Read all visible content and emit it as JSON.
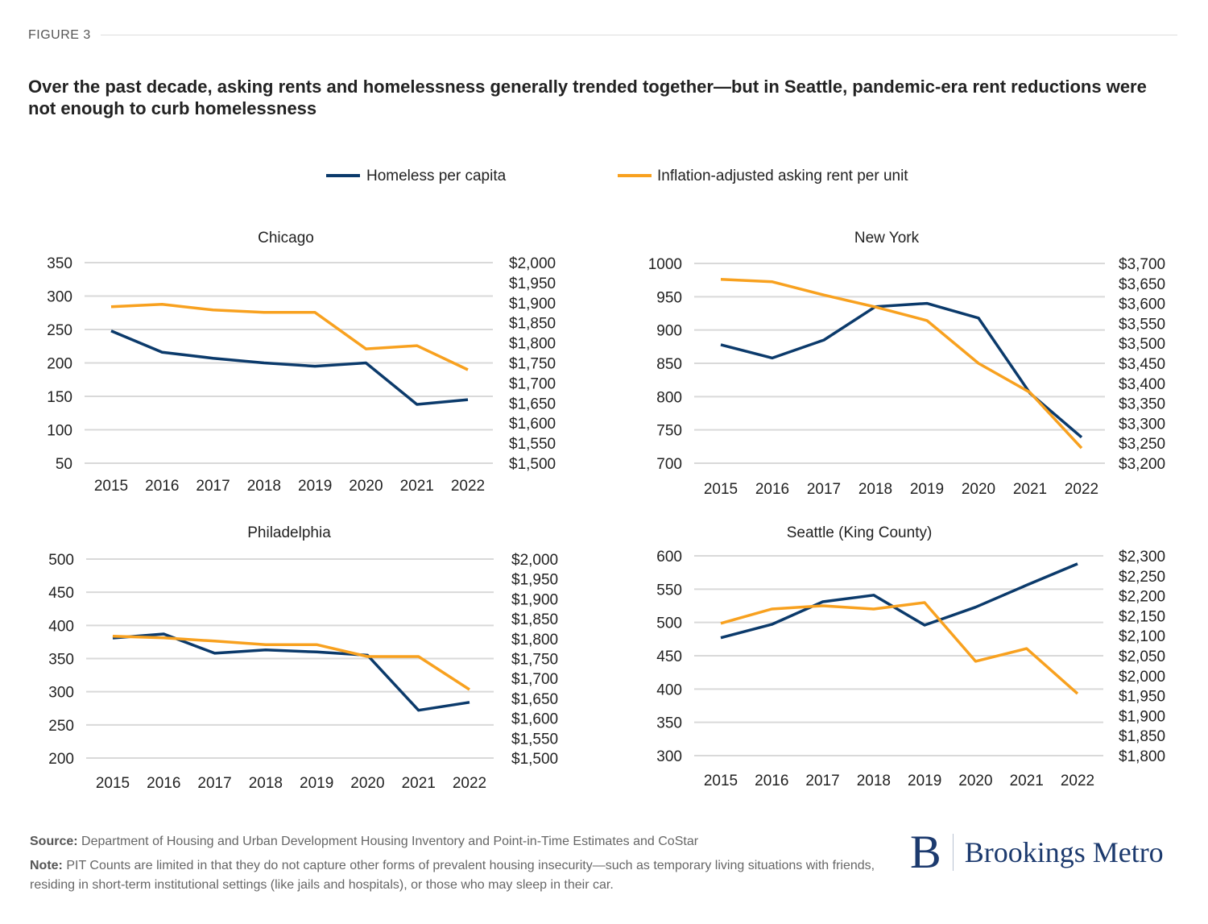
{
  "figure_label": "FIGURE 3",
  "title": "Over the past decade, asking rents and homelessness generally trended together—but in Seattle, pandemic-era rent reductions were not enough to curb homelessness",
  "legend": [
    {
      "label": "Homeless per capita",
      "color": "#0b3a6b"
    },
    {
      "label": "Inflation-adjusted asking rent per unit",
      "color": "#f8a11f"
    }
  ],
  "chart_data": [
    {
      "type": "line",
      "title": "Chicago",
      "categories": [
        "2015",
        "2016",
        "2017",
        "2018",
        "2019",
        "2020",
        "2021",
        "2022"
      ],
      "left_axis": {
        "ylim": [
          50,
          350
        ],
        "ticks": [
          "350",
          "300",
          "250",
          "200",
          "150",
          "100",
          "50"
        ]
      },
      "right_axis": {
        "ylim": [
          1500,
          2000
        ],
        "ticks": [
          "$2,000",
          "$1,950",
          "$1,900",
          "$1,850",
          "$1,800",
          "$1,750",
          "$1,700",
          "$1,650",
          "$1,600",
          "$1,550",
          "$1,500"
        ]
      },
      "grid": true,
      "series": [
        {
          "name": "Homeless per capita",
          "axis": "left",
          "values": [
            248,
            216,
            207,
            200,
            195,
            200,
            138,
            145
          ]
        },
        {
          "name": "Inflation-adjusted asking rent per unit",
          "axis": "right",
          "values": [
            1890,
            1896,
            1882,
            1876,
            1876,
            1785,
            1793,
            1733
          ]
        }
      ]
    },
    {
      "type": "line",
      "title": "New York",
      "categories": [
        "2015",
        "2016",
        "2017",
        "2018",
        "2019",
        "2020",
        "2021",
        "2022"
      ],
      "left_axis": {
        "ylim": [
          700,
          1000
        ],
        "ticks": [
          "1000",
          "950",
          "900",
          "850",
          "800",
          "750",
          "700"
        ]
      },
      "right_axis": {
        "ylim": [
          3200,
          3700
        ],
        "ticks": [
          "$3,700",
          "$3,650",
          "$3,600",
          "$3,550",
          "$3,500",
          "$3,450",
          "$3,400",
          "$3,350",
          "$3,300",
          "$3,250",
          "$3,200"
        ]
      },
      "grid": true,
      "series": [
        {
          "name": "Homeless per capita",
          "axis": "left",
          "values": [
            878,
            858,
            885,
            935,
            940,
            918,
            805,
            739
          ]
        },
        {
          "name": "Inflation-adjusted asking rent per unit",
          "axis": "right",
          "values": [
            3660,
            3654,
            3621,
            3591,
            3557,
            3450,
            3377,
            3238
          ]
        }
      ]
    },
    {
      "type": "line",
      "title": "Philadelphia",
      "categories": [
        "2015",
        "2016",
        "2017",
        "2018",
        "2019",
        "2020",
        "2021",
        "2022"
      ],
      "left_axis": {
        "ylim": [
          200,
          500
        ],
        "ticks": [
          "500",
          "450",
          "400",
          "350",
          "300",
          "250",
          "200"
        ]
      },
      "right_axis": {
        "ylim": [
          1500,
          2000
        ],
        "ticks": [
          "$2,000",
          "$1,950",
          "$1,900",
          "$1,850",
          "$1,800",
          "$1,750",
          "$1,700",
          "$1,650",
          "$1,600",
          "$1,550",
          "$1,500"
        ]
      },
      "grid": true,
      "series": [
        {
          "name": "Homeless per capita",
          "axis": "left",
          "values": [
            381,
            387,
            358,
            363,
            360,
            355,
            272,
            284
          ]
        },
        {
          "name": "Inflation-adjusted asking rent per unit",
          "axis": "right",
          "values": [
            1806,
            1802,
            1794,
            1785,
            1785,
            1755,
            1755,
            1672
          ]
        }
      ]
    },
    {
      "type": "line",
      "title": "Seattle (King County)",
      "categories": [
        "2015",
        "2016",
        "2017",
        "2018",
        "2019",
        "2020",
        "2021",
        "2022"
      ],
      "left_axis": {
        "ylim": [
          300,
          600
        ],
        "ticks": [
          "600",
          "550",
          "500",
          "450",
          "400",
          "350",
          "300"
        ]
      },
      "right_axis": {
        "ylim": [
          1800,
          2300
        ],
        "ticks": [
          "$2,300",
          "$2,250",
          "$2,200",
          "$2,150",
          "$2,100",
          "$2,050",
          "$2,000",
          "$1,950",
          "$1,900",
          "$1,850",
          "$1,800"
        ]
      },
      "grid": true,
      "series": [
        {
          "name": "Homeless per capita",
          "axis": "left",
          "values": [
            477,
            497,
            531,
            541,
            496,
            523,
            556,
            588
          ]
        },
        {
          "name": "Inflation-adjusted asking rent per unit",
          "axis": "right",
          "values": [
            2131,
            2167,
            2175,
            2167,
            2183,
            2036,
            2068,
            1955
          ]
        }
      ]
    }
  ],
  "footer": {
    "source_label": "Source:",
    "source_text": "Department of Housing and Urban Development Housing Inventory and Point-in-Time Estimates and CoStar",
    "note_label": "Note:",
    "note_text": "PIT Counts are limited in that they do not capture other forms of prevalent housing insecurity—such as temporary living situations with friends, residing in short-term institutional settings (like jails and hospitals), or those who may sleep in their car."
  },
  "logo": {
    "mark": "B",
    "name": "Brookings Metro"
  }
}
